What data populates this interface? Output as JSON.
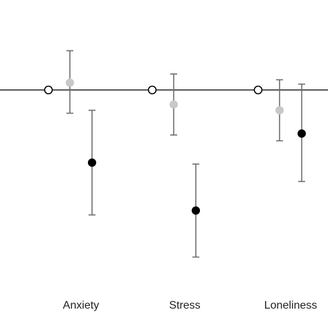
{
  "chart_data": {
    "type": "scatter",
    "categories": [
      "Anxiety",
      "Stress",
      "Loneliness"
    ],
    "reference_value": 0,
    "ylim": [
      -1.25,
      0.3
    ],
    "series": [
      {
        "marker": "open-circle",
        "color": "#ffffff",
        "stroke": "#000000",
        "values": [
          0,
          0,
          0
        ],
        "error_low": [
          null,
          null,
          null
        ],
        "error_high": [
          null,
          null,
          null
        ]
      },
      {
        "marker": "filled-circle",
        "color": "#c8c8c8",
        "stroke": "#c8c8c8",
        "values": [
          0.05,
          -0.1,
          -0.14
        ],
        "error_low": [
          -0.16,
          -0.31,
          -0.35
        ],
        "error_high": [
          0.27,
          0.11,
          0.07
        ]
      },
      {
        "marker": "filled-circle",
        "color": "#000000",
        "stroke": "#000000",
        "values": [
          -0.5,
          -0.83,
          -0.3
        ],
        "error_low": [
          -0.86,
          -1.15,
          -0.63
        ],
        "error_high": [
          -0.14,
          -0.51,
          0.04
        ]
      }
    ],
    "error_bar_color": "#6e6e6e",
    "axis_line_color": "#222222",
    "grid": false,
    "legend": "none"
  }
}
